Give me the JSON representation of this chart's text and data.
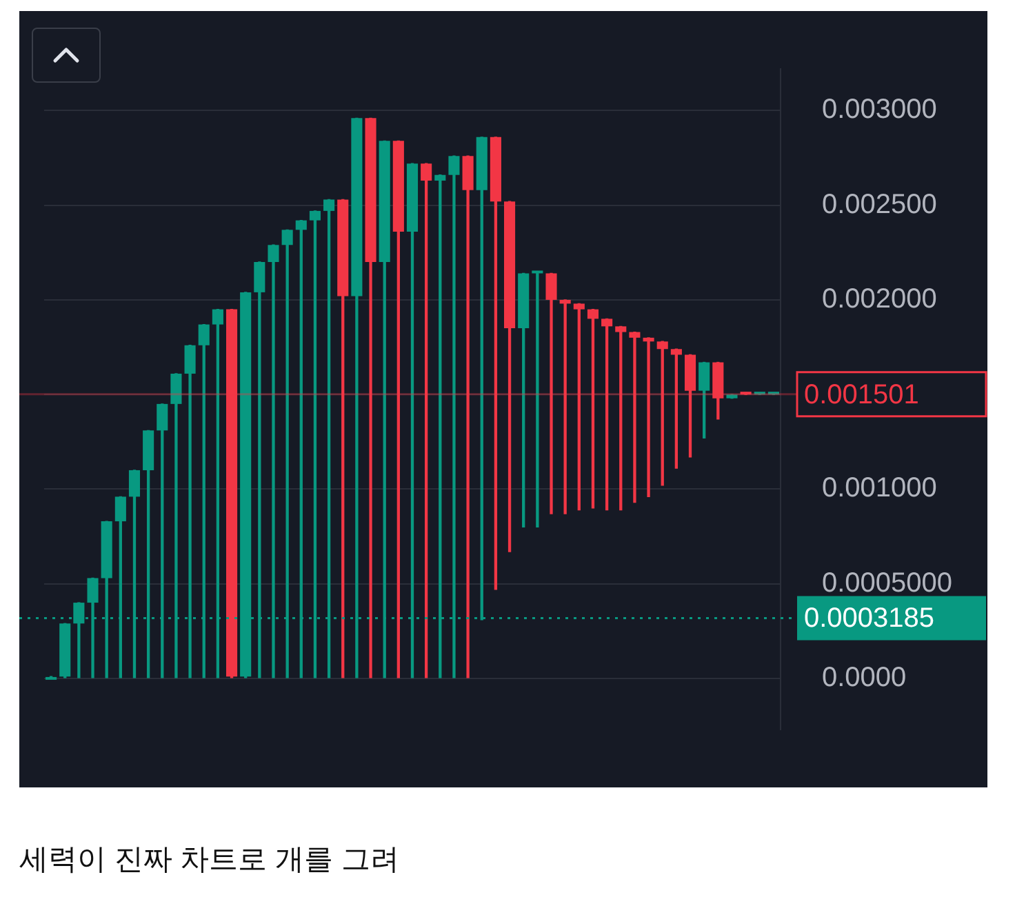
{
  "chart_data": {
    "type": "candlestick",
    "categories": [
      null,
      null,
      null,
      null,
      null,
      null,
      null,
      null,
      null,
      null,
      null,
      null,
      null,
      null,
      null,
      null,
      null,
      null,
      null,
      null,
      null,
      null,
      null,
      null,
      null,
      null,
      null,
      null,
      null,
      null,
      null,
      null,
      null,
      null,
      null,
      null,
      null,
      null,
      null,
      null,
      null,
      null,
      null,
      null,
      null,
      null,
      null,
      null,
      null,
      null,
      null,
      null,
      null
    ],
    "ohlc": [
      [
        0,
        1e-05,
        0,
        1e-05
      ],
      [
        1e-05,
        0.00029,
        0,
        0.00029
      ],
      [
        0.00029,
        0.0004,
        0,
        0.0004
      ],
      [
        0.0004,
        0.00053,
        0,
        0.00053
      ],
      [
        0.00053,
        0.00083,
        0,
        0.00083
      ],
      [
        0.00083,
        0.00096,
        0,
        0.00096
      ],
      [
        0.00096,
        0.0011,
        0,
        0.0011
      ],
      [
        0.0011,
        0.00131,
        0,
        0.00131
      ],
      [
        0.00131,
        0.00145,
        0,
        0.00145
      ],
      [
        0.00145,
        0.00161,
        0,
        0.00161
      ],
      [
        0.00161,
        0.00176,
        0,
        0.00176
      ],
      [
        0.00176,
        0.00187,
        0,
        0.00187
      ],
      [
        0.00187,
        0.00195,
        0,
        0.00195
      ],
      [
        0.00195,
        0.00195,
        0,
        1e-05
      ],
      [
        1e-05,
        0.00204,
        0,
        0.00204
      ],
      [
        0.00204,
        0.0022,
        0,
        0.0022
      ],
      [
        0.0022,
        0.00229,
        0,
        0.00229
      ],
      [
        0.00229,
        0.00237,
        0,
        0.00237
      ],
      [
        0.00237,
        0.00242,
        0,
        0.00242
      ],
      [
        0.00242,
        0.00247,
        0,
        0.00247
      ],
      [
        0.00247,
        0.00253,
        0,
        0.00253
      ],
      [
        0.00253,
        0.00253,
        0,
        0.00202
      ],
      [
        0.00202,
        0.00296,
        0,
        0.00296
      ],
      [
        0.00296,
        0.00296,
        0,
        0.0022
      ],
      [
        0.0022,
        0.00284,
        0,
        0.00284
      ],
      [
        0.00284,
        0.00284,
        0,
        0.00236
      ],
      [
        0.00236,
        0.00272,
        0,
        0.00272
      ],
      [
        0.00272,
        0.00272,
        0,
        0.00263
      ],
      [
        0.00263,
        0.00266,
        0,
        0.00266
      ],
      [
        0.00266,
        0.00276,
        0,
        0.00276
      ],
      [
        0.00276,
        0.00276,
        0,
        0.00258
      ],
      [
        0.00258,
        0.00286,
        0.00031,
        0.00286
      ],
      [
        0.00286,
        0.00286,
        0.00047,
        0.00252
      ],
      [
        0.00252,
        0.00252,
        0.00067,
        0.00185
      ],
      [
        0.00185,
        0.00214,
        0.0008,
        0.00214
      ],
      [
        0.00214,
        0.00215,
        0.0008,
        0.00215
      ],
      [
        0.00214,
        0.00214,
        0.00087,
        0.002
      ],
      [
        0.002,
        0.002,
        0.00087,
        0.00198
      ],
      [
        0.00198,
        0.00198,
        0.00089,
        0.00195
      ],
      [
        0.00195,
        0.00195,
        0.0009,
        0.0019
      ],
      [
        0.0019,
        0.0019,
        0.00089,
        0.00186
      ],
      [
        0.00186,
        0.00186,
        0.00089,
        0.00183
      ],
      [
        0.00183,
        0.00183,
        0.00093,
        0.0018
      ],
      [
        0.0018,
        0.0018,
        0.00096,
        0.00178
      ],
      [
        0.00178,
        0.00178,
        0.00102,
        0.00174
      ],
      [
        0.00174,
        0.00174,
        0.00111,
        0.00171
      ],
      [
        0.00171,
        0.00171,
        0.00117,
        0.00152
      ],
      [
        0.00152,
        0.00167,
        0.00127,
        0.00167
      ],
      [
        0.00167,
        0.00167,
        0.00137,
        0.00148
      ],
      [
        0.00148,
        0.0015,
        0.00148,
        0.0015
      ],
      [
        0.00151,
        0.00151,
        0.0015,
        0.0015
      ],
      [
        0.0015,
        0.001501,
        0.0015,
        0.001501
      ],
      [
        0.0015,
        0.001501,
        0.0015,
        0.001501
      ]
    ],
    "colors": [
      "#089981",
      "#089981",
      "#089981",
      "#089981",
      "#089981",
      "#089981",
      "#089981",
      "#089981",
      "#089981",
      "#089981",
      "#089981",
      "#089981",
      "#089981",
      "#f23645",
      "#089981",
      "#089981",
      "#089981",
      "#089981",
      "#089981",
      "#089981",
      "#089981",
      "#f23645",
      "#089981",
      "#f23645",
      "#089981",
      "#f23645",
      "#089981",
      "#f23645",
      "#089981",
      "#089981",
      "#f23645",
      "#089981",
      "#f23645",
      "#f23645",
      "#089981",
      "#089981",
      "#f23645",
      "#f23645",
      "#f23645",
      "#f23645",
      "#f23645",
      "#f23645",
      "#f23645",
      "#f23645",
      "#f23645",
      "#f23645",
      "#f23645",
      "#089981",
      "#f23645",
      "#089981",
      "#f23645",
      "#089981",
      "#089981"
    ],
    "ylim": [
      -0.00027,
      0.00322
    ],
    "yticks": [
      {
        "value": 0,
        "label": "0.0000"
      },
      {
        "value": 0.0005,
        "label": "0.0005000"
      },
      {
        "value": 0.001,
        "label": "0.001000"
      },
      {
        "value": 0.0015,
        "label": null
      },
      {
        "value": 0.002,
        "label": "0.002000"
      },
      {
        "value": 0.0025,
        "label": "0.002500"
      },
      {
        "value": 0.003,
        "label": "0.003000"
      }
    ],
    "tick_labels": "y",
    "grid": "y",
    "legend": false,
    "ref_lines": [
      {
        "axis": "y",
        "value": 0.0003185,
        "label": "0.0003185",
        "color": "#089981",
        "line_style": "dotted"
      },
      {
        "axis": "y",
        "value": 0.001501,
        "label": "0.001501",
        "color": "#f23645",
        "line_style": "solid"
      }
    ],
    "annotations": [
      "세력이 진짜 차트로 개를 그려"
    ]
  }
}
